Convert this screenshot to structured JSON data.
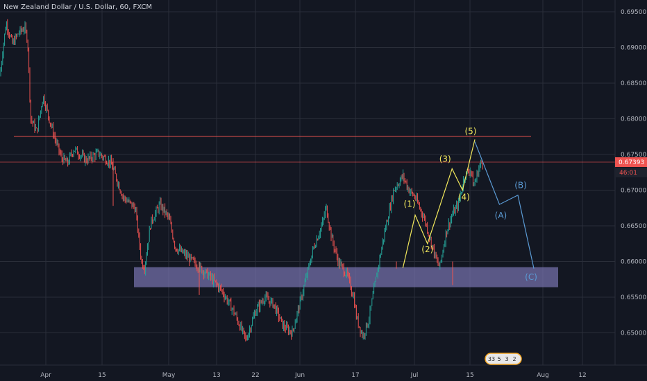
{
  "chart_title": "New Zealand Dollar / U.S. Dollar, 60, FXCM",
  "colors": {
    "background": "#131722",
    "grid": "#2a2e39",
    "up": "#26a69a",
    "down": "#ef5350",
    "resistance": "#ef5350",
    "support_zone": "#8a84c9",
    "wave_impulse": "#f2e85c",
    "wave_corrective": "#5b9bd5",
    "axis_text": "#b2b5be"
  },
  "chart_data": {
    "type": "candlestick",
    "x_ticks": [
      "Apr",
      "15",
      "May",
      "13",
      "22",
      "Jun",
      "17",
      "Jul",
      "15",
      "Aug",
      "12"
    ],
    "y_ticks": [
      "0.69500",
      "0.69000",
      "0.68500",
      "0.68000",
      "0.67500",
      "0.67000",
      "0.66500",
      "0.66000",
      "0.65500",
      "0.65000",
      "0.64500"
    ],
    "ylim": [
      0.6432,
      0.6972
    ],
    "price_path": [
      [
        0,
        0.686
      ],
      [
        0.005,
        0.69
      ],
      [
        0.01,
        0.6935
      ],
      [
        0.02,
        0.6905
      ],
      [
        0.03,
        0.692
      ],
      [
        0.04,
        0.6928
      ],
      [
        0.045,
        0.691
      ],
      [
        0.05,
        0.68
      ],
      [
        0.06,
        0.6782
      ],
      [
        0.07,
        0.6832
      ],
      [
        0.08,
        0.68
      ],
      [
        0.09,
        0.677
      ],
      [
        0.1,
        0.6745
      ],
      [
        0.11,
        0.6738
      ],
      [
        0.12,
        0.6758
      ],
      [
        0.14,
        0.6742
      ],
      [
        0.16,
        0.6752
      ],
      [
        0.18,
        0.6738
      ],
      [
        0.19,
        0.6715
      ],
      [
        0.2,
        0.669
      ],
      [
        0.22,
        0.6675
      ],
      [
        0.23,
        0.66
      ],
      [
        0.235,
        0.6592
      ],
      [
        0.245,
        0.6655
      ],
      [
        0.26,
        0.668
      ],
      [
        0.275,
        0.666
      ],
      [
        0.285,
        0.662
      ],
      [
        0.3,
        0.661
      ],
      [
        0.32,
        0.6595
      ],
      [
        0.34,
        0.658
      ],
      [
        0.36,
        0.656
      ],
      [
        0.38,
        0.653
      ],
      [
        0.4,
        0.649
      ],
      [
        0.415,
        0.653
      ],
      [
        0.43,
        0.655
      ],
      [
        0.445,
        0.654
      ],
      [
        0.46,
        0.651
      ],
      [
        0.475,
        0.65
      ],
      [
        0.49,
        0.655
      ],
      [
        0.51,
        0.662
      ],
      [
        0.525,
        0.6655
      ],
      [
        0.53,
        0.6677
      ],
      [
        0.54,
        0.663
      ],
      [
        0.55,
        0.66
      ],
      [
        0.565,
        0.658
      ],
      [
        0.575,
        0.655
      ],
      [
        0.58,
        0.652
      ],
      [
        0.59,
        0.6495
      ],
      [
        0.6,
        0.652
      ],
      [
        0.61,
        0.657
      ],
      [
        0.625,
        0.664
      ],
      [
        0.64,
        0.67
      ],
      [
        0.655,
        0.672
      ],
      [
        0.665,
        0.67
      ],
      [
        0.675,
        0.669
      ],
      [
        0.69,
        0.666
      ],
      [
        0.7,
        0.663
      ],
      [
        0.71,
        0.66
      ],
      [
        0.715,
        0.6592
      ],
      [
        0.725,
        0.664
      ],
      [
        0.735,
        0.6665
      ],
      [
        0.745,
        0.668
      ],
      [
        0.755,
        0.672
      ],
      [
        0.765,
        0.673
      ],
      [
        0.77,
        0.6705
      ],
      [
        0.78,
        0.6735
      ],
      [
        0.785,
        0.6739
      ]
    ],
    "resistance_levels": [
      0.67755,
      0.67393
    ],
    "support_zone": [
      0.6564,
      0.6592
    ],
    "impulse_wave": {
      "labels": [
        "(1)",
        "(2)",
        "(3)",
        "(4)",
        "(5)"
      ],
      "points": [
        [
          0.655,
          0.6591
        ],
        [
          0.675,
          0.6665
        ],
        [
          0.695,
          0.6625
        ],
        [
          0.735,
          0.673
        ],
        [
          0.752,
          0.67
        ],
        [
          0.772,
          0.6771
        ]
      ]
    },
    "corrective_wave": {
      "labels": [
        "(A)",
        "(B)",
        "(C)"
      ],
      "points": [
        [
          0.772,
          0.6768
        ],
        [
          0.812,
          0.668
        ],
        [
          0.842,
          0.6693
        ],
        [
          0.868,
          0.659
        ]
      ]
    }
  },
  "price_scale": {
    "last_price": "0.67393",
    "countdown": "46:01"
  },
  "events_badge": {
    "values": [
      "33",
      "5",
      "3",
      "2"
    ]
  }
}
